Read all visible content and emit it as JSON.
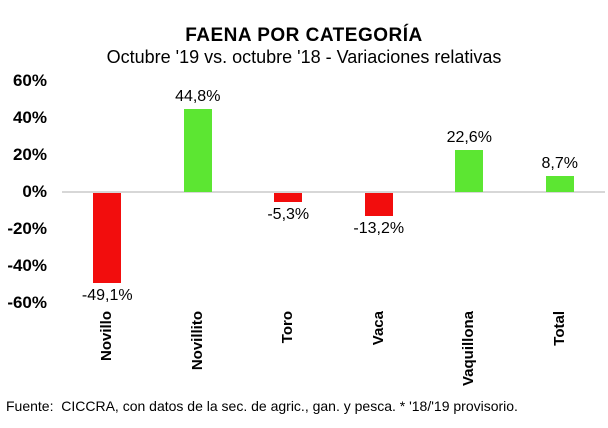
{
  "title": "FAENA POR CATEGORÍA",
  "subtitle": "Octubre '19 vs. octubre '18 - Variaciones relativas",
  "footer": "Fuente:  CICCRA, con datos de la sec. de agric., gan. y pesca. * '18/'19 provisorio.",
  "colors": {
    "positive_bar": "#5ce632",
    "negative_bar": "#f20d0d",
    "axis_line": "#d7d7d7",
    "text": "#000000"
  },
  "chart_data": {
    "type": "bar",
    "title": "FAENA POR CATEGORÍA",
    "subtitle": "Octubre '19 vs. octubre '18 - Variaciones relativas",
    "categories": [
      "Novillo",
      "Novillito",
      "Toro",
      "Vaca",
      "Vaquillona",
      "Total"
    ],
    "values": [
      -49.1,
      44.8,
      -5.3,
      -13.2,
      22.6,
      8.7
    ],
    "value_labels": [
      "-49,1%",
      "44,8%",
      "-5,3%",
      "-13,2%",
      "22,6%",
      "8,7%"
    ],
    "ylim": [
      -60,
      60
    ],
    "ytick_values": [
      60,
      40,
      20,
      0,
      -20,
      -40,
      -60
    ],
    "ytick_labels": [
      "60%",
      "40%",
      "20%",
      "0%",
      "-20%",
      "-40%",
      "-60%"
    ],
    "xlabel": "",
    "ylabel": "",
    "grid": false,
    "legend": null,
    "color_rule": "green for positive values, red for negative values",
    "source_note": "Fuente:  CICCRA, con datos de la sec. de agric., gan. y pesca. * '18/'19 provisorio."
  }
}
